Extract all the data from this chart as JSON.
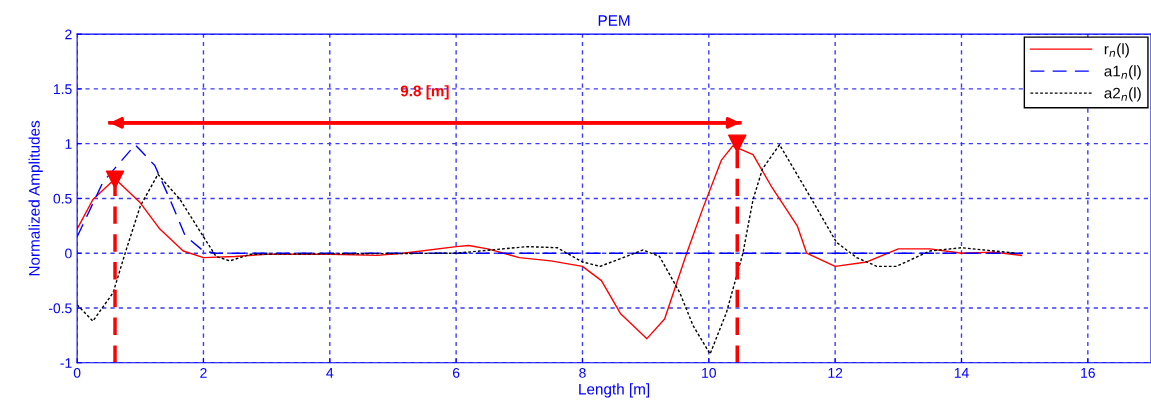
{
  "chart_data": {
    "type": "line",
    "title": "PEM",
    "xlabel": "Length [m]",
    "ylabel": "Normalized Amplitudes",
    "xlim": [
      0,
      17
    ],
    "xticks": [
      0,
      2,
      4,
      6,
      8,
      10,
      12,
      14,
      16
    ],
    "ylim": [
      -1,
      2
    ],
    "yticks": [
      -1,
      -0.5,
      0,
      0.5,
      1,
      1.5,
      2
    ],
    "grid": true,
    "legend": "top right",
    "annotations": [
      "9.8 [m]"
    ],
    "series": [
      {
        "name": "r$_{n}$(l)",
        "color": "#ff0000",
        "line_style": "solid",
        "x": [
          0,
          0.25,
          0.6,
          1.0,
          1.31,
          1.68,
          2.0,
          2.5,
          3,
          4,
          4.75,
          5.16,
          6.0,
          6.2,
          6.5,
          7.0,
          7.5,
          8.0,
          8.3,
          8.6,
          9.02,
          9.3,
          9.65,
          9.9,
          10.2,
          10.38,
          10.7,
          11.0,
          11.4,
          11.55,
          12.0,
          12.5,
          13.0,
          13.5,
          14.0,
          14.5,
          14.95
        ],
        "values": [
          0.22,
          0.49,
          0.68,
          0.46,
          0.22,
          0.02,
          -0.04,
          -0.03,
          -0.01,
          -0.01,
          -0.02,
          0.0,
          0.06,
          0.07,
          0.04,
          -0.04,
          -0.07,
          -0.12,
          -0.25,
          -0.55,
          -0.78,
          -0.6,
          0.0,
          0.4,
          0.85,
          0.98,
          0.9,
          0.6,
          0.25,
          0.0,
          -0.12,
          -0.08,
          0.04,
          0.04,
          0.0,
          0.01,
          -0.02
        ]
      },
      {
        "name": "a1$_{n}$(l)",
        "color": "#0000ff",
        "line_style": "dashed",
        "x": [
          0,
          0.41,
          0.92,
          1.23,
          1.47,
          1.71,
          2.0,
          2.2,
          15.0
        ],
        "values": [
          0.15,
          0.65,
          0.99,
          0.8,
          0.49,
          0.16,
          0.02,
          0.0,
          0.0
        ]
      },
      {
        "name": "a2$_{n}$(l)",
        "color": "#000000",
        "line_style": "dotted",
        "x": [
          0,
          0.25,
          0.57,
          0.76,
          1.0,
          1.28,
          1.63,
          2.0,
          2.2,
          2.42,
          2.74,
          6.0,
          7.12,
          7.6,
          8.0,
          8.28,
          8.96,
          9.22,
          9.54,
          9.75,
          10.02,
          10.28,
          10.54,
          10.7,
          10.85,
          11.12,
          11.6,
          12.02,
          12.34,
          12.66,
          12.97,
          13.5,
          14.0,
          14.87
        ],
        "values": [
          -0.47,
          -0.62,
          -0.36,
          0.0,
          0.43,
          0.72,
          0.49,
          0.15,
          -0.03,
          -0.07,
          -0.01,
          0.0,
          0.06,
          0.05,
          -0.08,
          -0.12,
          0.03,
          -0.03,
          -0.36,
          -0.66,
          -0.92,
          -0.54,
          0.0,
          0.49,
          0.77,
          0.99,
          0.52,
          0.1,
          -0.04,
          -0.12,
          -0.12,
          0.02,
          0.05,
          0.0
        ]
      },
      {
        "type": "line",
        "color": "#ff0000",
        "line_style": "dashed",
        "x": [
          0.6,
          0.6
        ],
        "values": [
          -1,
          0.67
        ]
      },
      {
        "type": "line",
        "color": "#ff0000",
        "line_style": "dashed",
        "x": [
          10.45,
          10.45
        ],
        "values": [
          -1,
          1.0
        ]
      },
      {
        "type": "scatter",
        "color": "#ff0000",
        "marker": "triangle",
        "x": [
          0.6,
          10.45
        ],
        "values": [
          0.67,
          1.0
        ]
      },
      {
        "type": "line",
        "color": "#ff0000",
        "line_style": "solid",
        "x": [
          0.52,
          10.49
        ],
        "values": [
          1.19,
          1.19
        ]
      }
    ]
  }
}
